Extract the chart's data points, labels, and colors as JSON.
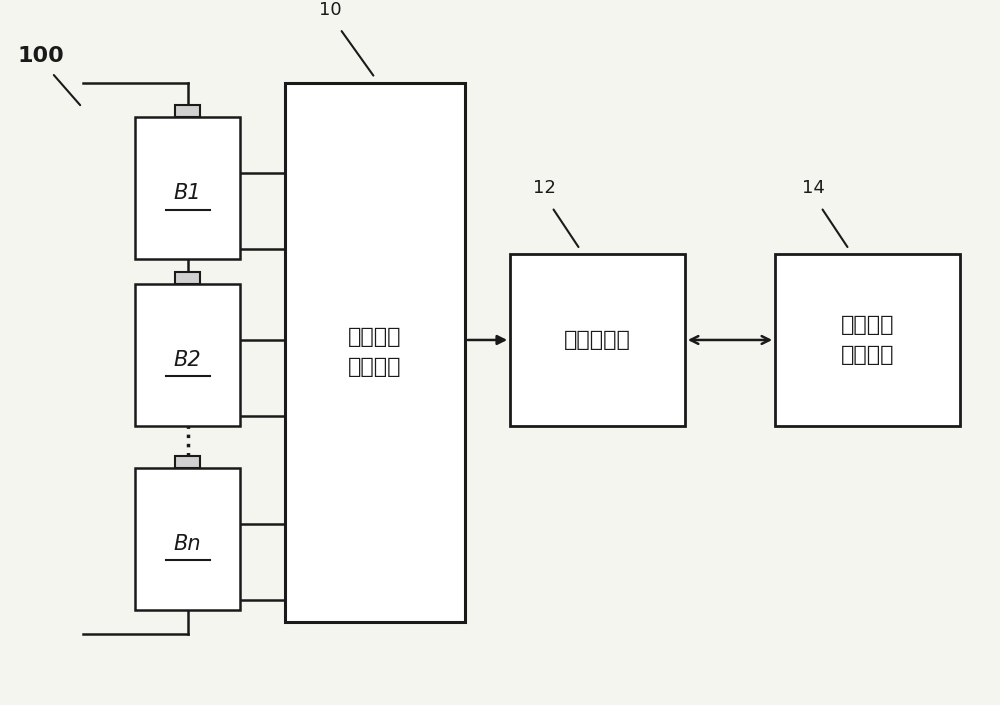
{
  "bg_color": "#f5f5f0",
  "label_100": "100",
  "label_10": "10",
  "label_12": "12",
  "label_14": "14",
  "box_10_text": "电池特性\n测量装置",
  "box_12_text": "存储计算机",
  "box_14_text": "电池特性\n分析装置",
  "battery_labels": [
    "B1",
    "B2",
    "Bn"
  ],
  "line_color": "#1a1a1a",
  "box_color": "#ffffff",
  "font_size_label": 13,
  "font_size_box": 16,
  "font_size_battery": 15
}
